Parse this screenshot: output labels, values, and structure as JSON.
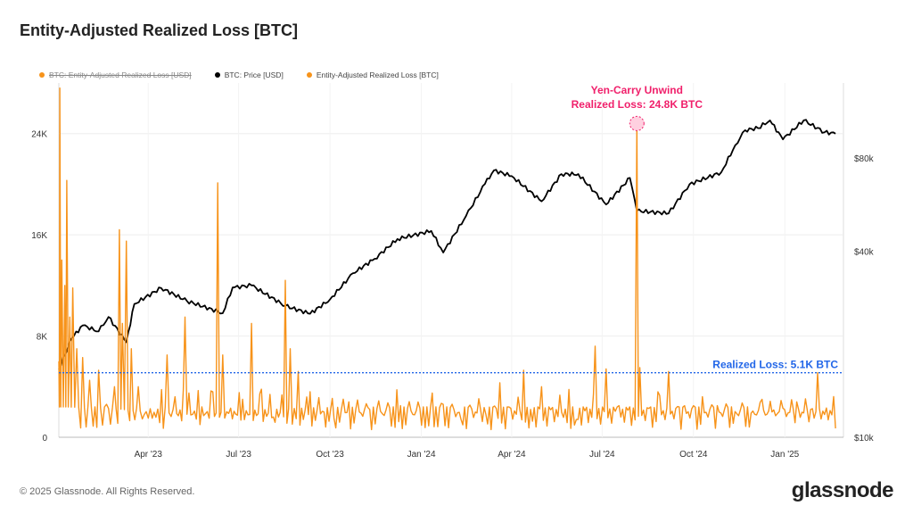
{
  "title": "Entity-Adjusted Realized Loss [BTC]",
  "legend": [
    {
      "label": "BTC: Entity-Adjusted Realized Loss [USD]",
      "color": "#f7931a",
      "disabled": true
    },
    {
      "label": "BTC: Price [USD]",
      "color": "#000000",
      "disabled": false
    },
    {
      "label": "Entity-Adjusted Realized Loss [BTC]",
      "color": "#f7931a",
      "disabled": false
    }
  ],
  "footer": "© 2025 Glassnode. All Rights Reserved.",
  "brand": "glassnode",
  "chart_data": {
    "type": "line",
    "x_range": [
      "2023-01-01",
      "2025-03-01"
    ],
    "x_ticks": [
      "Apr '23",
      "Jul '23",
      "Oct '23",
      "Jan '24",
      "Apr '24",
      "Jul '24",
      "Oct '24",
      "Jan '25"
    ],
    "y_left": {
      "ticks": [
        "0",
        "8K",
        "16K",
        "24K"
      ],
      "range": [
        0,
        28000
      ]
    },
    "y_right": {
      "ticks": [
        "$10k",
        "$40k",
        "$80k"
      ],
      "scale": "log",
      "range": [
        10000,
        140000
      ]
    },
    "grid": true,
    "series": [
      {
        "name": "BTC: Price [USD]",
        "color": "#000000",
        "axis": "right",
        "points": [
          [
            "2023-01-01",
            16600
          ],
          [
            "2023-01-14",
            20900
          ],
          [
            "2023-01-25",
            23000
          ],
          [
            "2023-02-10",
            22000
          ],
          [
            "2023-02-20",
            24500
          ],
          [
            "2023-03-10",
            20300
          ],
          [
            "2023-03-18",
            27000
          ],
          [
            "2023-04-14",
            30400
          ],
          [
            "2023-05-10",
            27600
          ],
          [
            "2023-06-15",
            25200
          ],
          [
            "2023-06-25",
            30500
          ],
          [
            "2023-07-14",
            31000
          ],
          [
            "2023-08-17",
            26600
          ],
          [
            "2023-09-11",
            25100
          ],
          [
            "2023-10-01",
            27900
          ],
          [
            "2023-10-24",
            33900
          ],
          [
            "2023-11-15",
            37800
          ],
          [
            "2023-12-08",
            43800
          ],
          [
            "2024-01-11",
            46500
          ],
          [
            "2024-01-23",
            39600
          ],
          [
            "2024-02-15",
            52000
          ],
          [
            "2024-03-05",
            66000
          ],
          [
            "2024-03-14",
            73000
          ],
          [
            "2024-04-01",
            70000
          ],
          [
            "2024-05-01",
            58000
          ],
          [
            "2024-05-21",
            71000
          ],
          [
            "2024-06-07",
            71000
          ],
          [
            "2024-07-05",
            56600
          ],
          [
            "2024-07-29",
            69000
          ],
          [
            "2024-08-05",
            54000
          ],
          [
            "2024-09-06",
            53000
          ],
          [
            "2024-09-27",
            65800
          ],
          [
            "2024-10-29",
            72000
          ],
          [
            "2024-11-12",
            88000
          ],
          [
            "2024-11-22",
            98500
          ],
          [
            "2024-12-05",
            100000
          ],
          [
            "2024-12-17",
            106000
          ],
          [
            "2024-12-30",
            92000
          ],
          [
            "2025-01-20",
            106000
          ],
          [
            "2025-02-10",
            97000
          ],
          [
            "2025-02-21",
            96000
          ]
        ]
      },
      {
        "name": "Entity-Adjusted Realized Loss [BTC]",
        "color": "#f7931a",
        "axis": "left",
        "points": [
          [
            "2023-01-01",
            6000
          ],
          [
            "2023-01-02",
            27600
          ],
          [
            "2023-01-04",
            14000
          ],
          [
            "2023-01-07",
            12000
          ],
          [
            "2023-01-09",
            20300
          ],
          [
            "2023-01-12",
            9500
          ],
          [
            "2023-01-15",
            11800
          ],
          [
            "2023-01-19",
            7000
          ],
          [
            "2023-01-25",
            6300
          ],
          [
            "2023-02-01",
            4500
          ],
          [
            "2023-02-10",
            5300
          ],
          [
            "2023-02-18",
            2600
          ],
          [
            "2023-02-26",
            4000
          ],
          [
            "2023-03-03",
            16400
          ],
          [
            "2023-03-06",
            9000
          ],
          [
            "2023-03-10",
            15500
          ],
          [
            "2023-03-15",
            7000
          ],
          [
            "2023-03-22",
            4000
          ],
          [
            "2023-03-28",
            1800
          ],
          [
            "2023-04-05",
            1500
          ],
          [
            "2023-04-20",
            6500
          ],
          [
            "2023-04-28",
            3200
          ],
          [
            "2023-05-08",
            9500
          ],
          [
            "2023-05-12",
            3500
          ],
          [
            "2023-05-25",
            2400
          ],
          [
            "2023-06-05",
            3600
          ],
          [
            "2023-06-10",
            20100
          ],
          [
            "2023-06-15",
            6500
          ],
          [
            "2023-06-23",
            2300
          ],
          [
            "2023-07-05",
            3000
          ],
          [
            "2023-07-14",
            9000
          ],
          [
            "2023-07-24",
            3800
          ],
          [
            "2023-08-05",
            1600
          ],
          [
            "2023-08-17",
            12400
          ],
          [
            "2023-08-22",
            7000
          ],
          [
            "2023-08-30",
            5200
          ],
          [
            "2023-09-11",
            3600
          ],
          [
            "2023-09-25",
            2000
          ],
          [
            "2023-10-05",
            1500
          ],
          [
            "2023-10-20",
            2800
          ],
          [
            "2023-11-10",
            2200
          ],
          [
            "2023-12-11",
            2500
          ],
          [
            "2024-01-03",
            2400
          ],
          [
            "2024-01-12",
            3500
          ],
          [
            "2024-01-23",
            2600
          ],
          [
            "2024-02-10",
            1400
          ],
          [
            "2024-03-06",
            1800
          ],
          [
            "2024-03-20",
            4300
          ],
          [
            "2024-04-13",
            5300
          ],
          [
            "2024-04-20",
            2200
          ],
          [
            "2024-05-01",
            4000
          ],
          [
            "2024-06-05",
            1400
          ],
          [
            "2024-06-24",
            7200
          ],
          [
            "2024-07-05",
            5400
          ],
          [
            "2024-07-18",
            2500
          ],
          [
            "2024-08-05",
            24800
          ],
          [
            "2024-08-08",
            5500
          ],
          [
            "2024-08-28",
            3300
          ],
          [
            "2024-09-06",
            5200
          ],
          [
            "2024-09-22",
            2500
          ],
          [
            "2024-10-10",
            3200
          ],
          [
            "2024-10-25",
            2500
          ],
          [
            "2024-11-10",
            1100
          ],
          [
            "2024-11-28",
            1900
          ],
          [
            "2024-12-09",
            3000
          ],
          [
            "2024-12-19",
            2000
          ],
          [
            "2024-12-30",
            2300
          ],
          [
            "2025-01-13",
            2800
          ],
          [
            "2025-01-27",
            2200
          ],
          [
            "2025-02-03",
            5100
          ],
          [
            "2025-02-10",
            1800
          ],
          [
            "2025-02-21",
            700
          ]
        ]
      }
    ],
    "annotations": [
      {
        "type": "peak",
        "lines": [
          "Yen-Carry Unwind",
          "Realized Loss: 24.8K BTC"
        ],
        "x": "2024-08-05",
        "y": 24800,
        "color": "#f0206b"
      },
      {
        "type": "hline",
        "label": "Realized Loss: 5.1K BTC",
        "y": 5100,
        "color": "#2266e8"
      }
    ]
  }
}
